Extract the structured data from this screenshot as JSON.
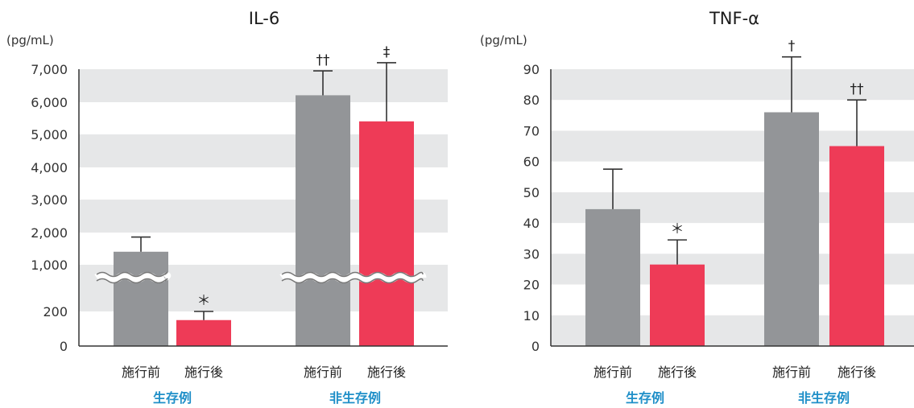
{
  "chart_data": [
    {
      "type": "bar",
      "title": "IL-6",
      "unit": "(pg/mL)",
      "colors": {
        "before": "#939598",
        "after": "#ee3b57",
        "stripe": "#e6e7e8",
        "group_label": "#1f8fc8"
      },
      "y_ticks": [
        "0",
        "200",
        "1,000",
        "2,000",
        "3,000",
        "4,000",
        "5,000",
        "6,000",
        "7,000"
      ],
      "axis_break": true,
      "groups": [
        {
          "label": "生存例",
          "bars": [
            {
              "category": "施行前",
              "series": "before",
              "value": 1400,
              "error_upper": 1850,
              "annotation": ""
            },
            {
              "category": "施行後",
              "series": "after",
              "value": 150,
              "error_upper": 200,
              "annotation": "＊"
            }
          ]
        },
        {
          "label": "非生存例",
          "bars": [
            {
              "category": "施行前",
              "series": "before",
              "value": 6200,
              "error_upper": 6950,
              "annotation": "††"
            },
            {
              "category": "施行後",
              "series": "after",
              "value": 5400,
              "error_upper": 7200,
              "annotation": "‡"
            }
          ]
        }
      ]
    },
    {
      "type": "bar",
      "title": "TNF-α",
      "unit": "(pg/mL)",
      "colors": {
        "before": "#939598",
        "after": "#ee3b57",
        "stripe": "#e6e7e8",
        "group_label": "#1f8fc8"
      },
      "y_ticks": [
        "0",
        "10",
        "20",
        "30",
        "40",
        "50",
        "60",
        "70",
        "80",
        "90"
      ],
      "ylim": [
        0,
        90
      ],
      "axis_break": false,
      "groups": [
        {
          "label": "生存例",
          "bars": [
            {
              "category": "施行前",
              "series": "before",
              "value": 44.5,
              "error_upper": 57.5,
              "annotation": ""
            },
            {
              "category": "施行後",
              "series": "after",
              "value": 26.5,
              "error_upper": 34.5,
              "annotation": "＊"
            }
          ]
        },
        {
          "label": "非生存例",
          "bars": [
            {
              "category": "施行前",
              "series": "before",
              "value": 76,
              "error_upper": 94,
              "annotation": "†"
            },
            {
              "category": "施行後",
              "series": "after",
              "value": 65,
              "error_upper": 80,
              "annotation": "††"
            }
          ]
        }
      ]
    }
  ]
}
